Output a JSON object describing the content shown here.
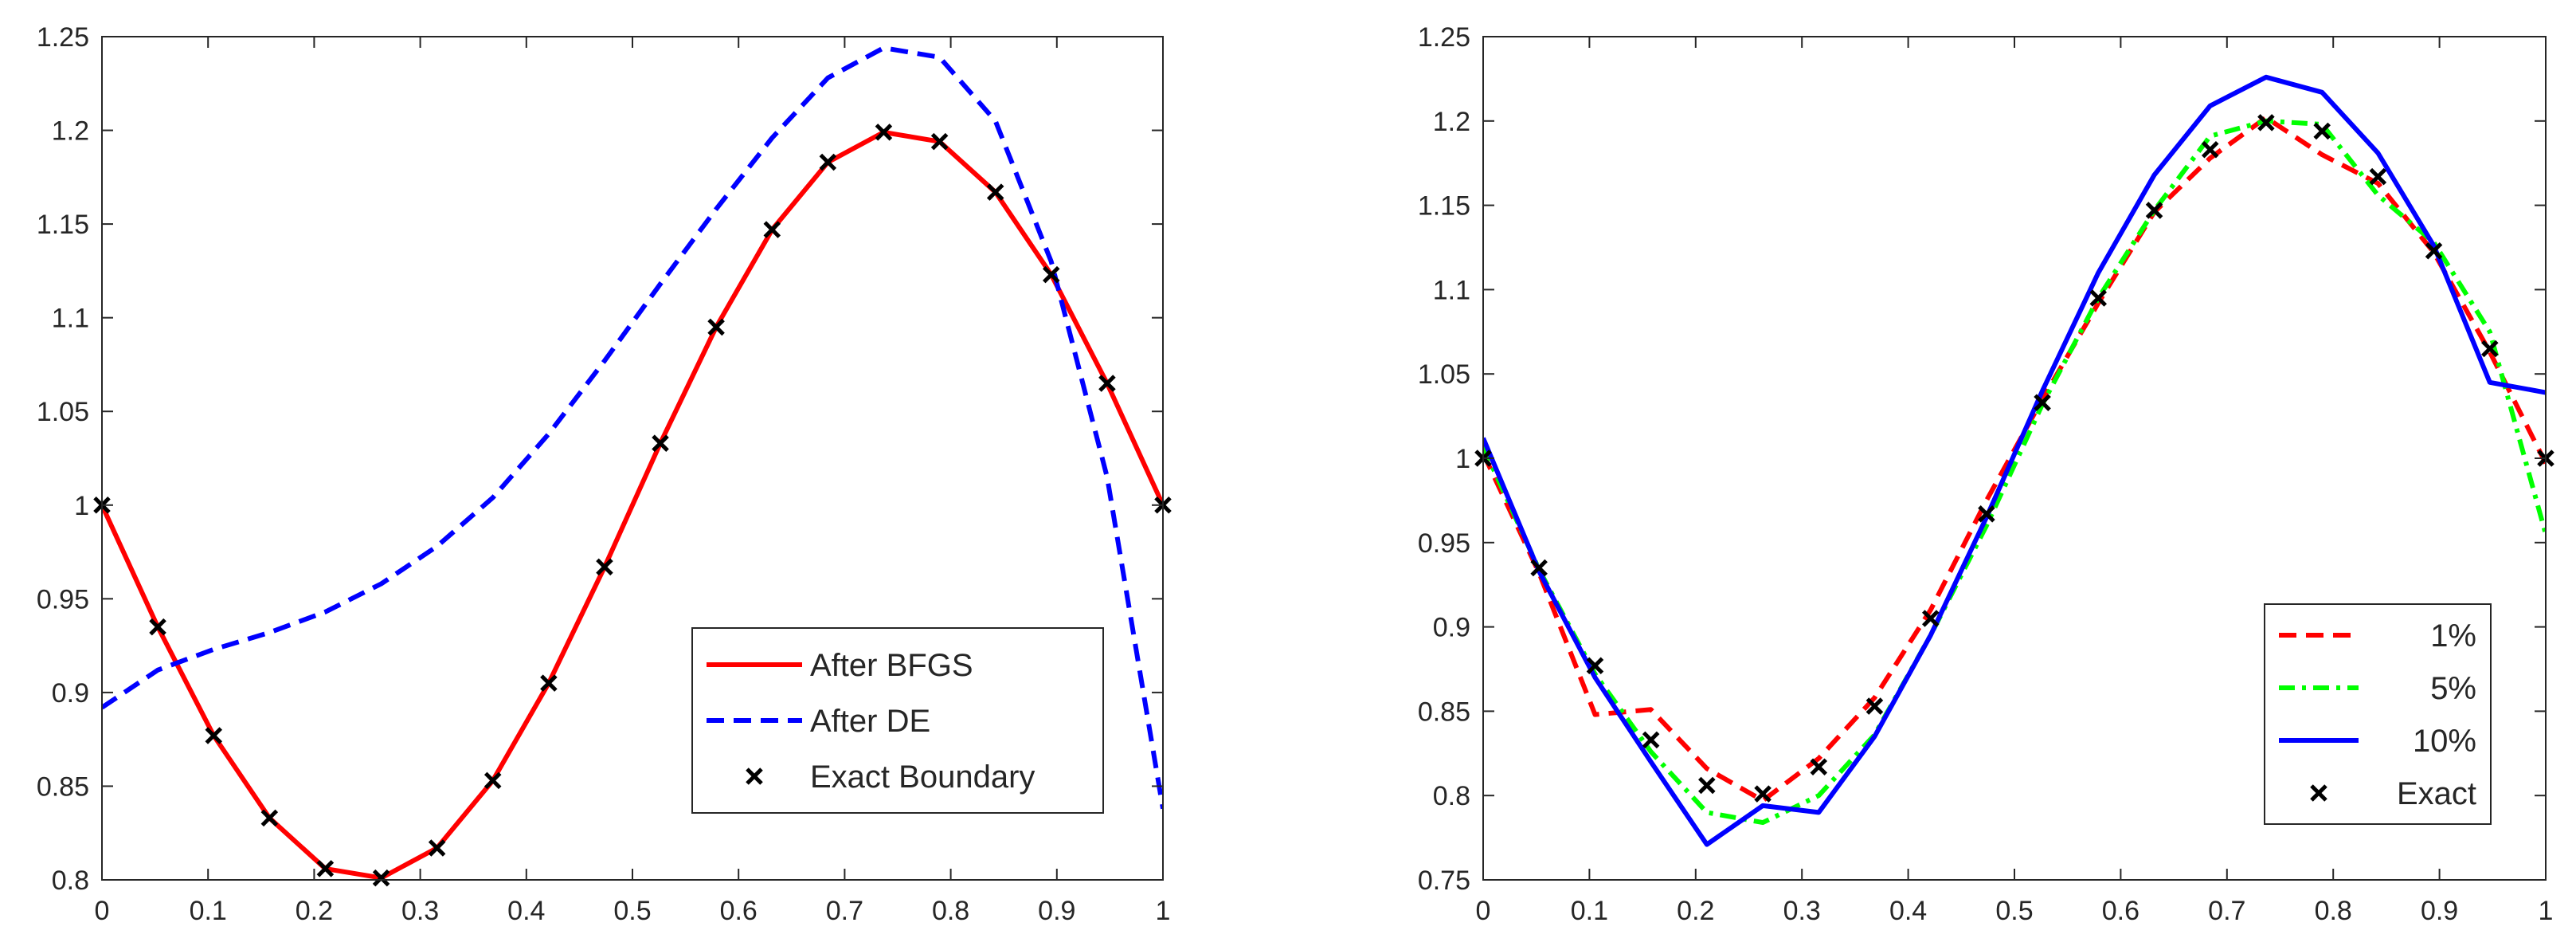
{
  "chart_data": [
    {
      "type": "line",
      "title": "",
      "xlabel": "",
      "ylabel": "",
      "xlim": [
        0,
        1
      ],
      "ylim": [
        0.8,
        1.25
      ],
      "xticks": [
        0,
        0.1,
        0.2,
        0.3,
        0.4,
        0.5,
        0.6,
        0.7,
        0.8,
        0.9,
        1
      ],
      "xtick_labels": [
        "0",
        "0.1",
        "0.2",
        "0.3",
        "0.4",
        "0.5",
        "0.6",
        "0.7",
        "0.8",
        "0.9",
        "1"
      ],
      "yticks": [
        0.8,
        0.85,
        0.9,
        0.95,
        1,
        1.05,
        1.1,
        1.15,
        1.2,
        1.25
      ],
      "ytick_labels": [
        "0.8",
        "0.85",
        "0.9",
        "0.95",
        "1",
        "1.05",
        "1.1",
        "1.15",
        "1.2",
        "1.25"
      ],
      "legend_position": "bottom-right",
      "series": [
        {
          "name": "After BFGS",
          "style": "solid",
          "color": "#ff0000",
          "x": [
            0,
            0.0526,
            0.1053,
            0.1579,
            0.2105,
            0.2632,
            0.3158,
            0.3684,
            0.4211,
            0.4737,
            0.5263,
            0.5789,
            0.6316,
            0.6842,
            0.7368,
            0.7895,
            0.8421,
            0.8947,
            0.9474,
            1
          ],
          "y": [
            1.0,
            0.935,
            0.877,
            0.833,
            0.806,
            0.801,
            0.817,
            0.853,
            0.905,
            0.967,
            1.033,
            1.095,
            1.147,
            1.183,
            1.199,
            1.194,
            1.167,
            1.123,
            1.065,
            1.0
          ]
        },
        {
          "name": "After DE",
          "style": "dashed",
          "color": "#0000ff",
          "x": [
            0,
            0.0526,
            0.1053,
            0.1579,
            0.2105,
            0.2632,
            0.3158,
            0.3684,
            0.4211,
            0.4737,
            0.5263,
            0.5789,
            0.6316,
            0.6842,
            0.7368,
            0.7895,
            0.8421,
            0.8947,
            0.9474,
            1
          ],
          "y": [
            0.892,
            0.912,
            0.923,
            0.932,
            0.943,
            0.958,
            0.978,
            1.004,
            1.038,
            1.077,
            1.118,
            1.158,
            1.196,
            1.228,
            1.244,
            1.239,
            1.205,
            1.13,
            1.015,
            0.838
          ]
        },
        {
          "name": "Exact Boundary",
          "style": "marker-x",
          "color": "#000000",
          "x": [
            0,
            0.0526,
            0.1053,
            0.1579,
            0.2105,
            0.2632,
            0.3158,
            0.3684,
            0.4211,
            0.4737,
            0.5263,
            0.5789,
            0.6316,
            0.6842,
            0.7368,
            0.7895,
            0.8421,
            0.8947,
            0.9474,
            1
          ],
          "y": [
            1.0,
            0.935,
            0.877,
            0.833,
            0.806,
            0.801,
            0.817,
            0.853,
            0.905,
            0.967,
            1.033,
            1.095,
            1.147,
            1.183,
            1.199,
            1.194,
            1.167,
            1.123,
            1.065,
            1.0
          ]
        }
      ]
    },
    {
      "type": "line",
      "title": "",
      "xlabel": "",
      "ylabel": "",
      "xlim": [
        0,
        1
      ],
      "ylim": [
        0.75,
        1.25
      ],
      "xticks": [
        0,
        0.1,
        0.2,
        0.3,
        0.4,
        0.5,
        0.6,
        0.7,
        0.8,
        0.9,
        1
      ],
      "xtick_labels": [
        "0",
        "0.1",
        "0.2",
        "0.3",
        "0.4",
        "0.5",
        "0.6",
        "0.7",
        "0.8",
        "0.9",
        "1"
      ],
      "yticks": [
        0.75,
        0.8,
        0.85,
        0.9,
        0.95,
        1,
        1.05,
        1.1,
        1.15,
        1.2,
        1.25
      ],
      "ytick_labels": [
        "0.75",
        "0.8",
        "0.85",
        "0.9",
        "0.95",
        "1",
        "1.05",
        "1.1",
        "1.15",
        "1.2",
        "1.25"
      ],
      "legend_position": "bottom-right",
      "series": [
        {
          "name": "1%",
          "style": "dashed",
          "color": "#ff0000",
          "x": [
            0,
            0.0526,
            0.1053,
            0.1579,
            0.2105,
            0.2632,
            0.3158,
            0.3684,
            0.4211,
            0.4737,
            0.5263,
            0.5789,
            0.6316,
            0.6842,
            0.7368,
            0.7895,
            0.8421,
            0.8947,
            0.9474,
            1
          ],
          "y": [
            1.003,
            0.932,
            0.848,
            0.851,
            0.816,
            0.797,
            0.822,
            0.858,
            0.91,
            0.975,
            1.035,
            1.092,
            1.146,
            1.178,
            1.202,
            1.18,
            1.163,
            1.122,
            1.063,
            0.997
          ]
        },
        {
          "name": "5%",
          "style": "dashdot",
          "color": "#00ff00",
          "x": [
            0,
            0.0526,
            0.1053,
            0.1579,
            0.2105,
            0.2632,
            0.3158,
            0.3684,
            0.4211,
            0.4737,
            0.5263,
            0.5789,
            0.6316,
            0.6842,
            0.7368,
            0.7895,
            0.8421,
            0.8947,
            0.9474,
            1
          ],
          "y": [
            1.007,
            0.934,
            0.872,
            0.826,
            0.79,
            0.784,
            0.8,
            0.836,
            0.895,
            0.96,
            1.032,
            1.095,
            1.147,
            1.191,
            1.2,
            1.198,
            1.156,
            1.128,
            1.075,
            0.955
          ]
        },
        {
          "name": "10%",
          "style": "solid",
          "color": "#0000ff",
          "x": [
            0,
            0.0526,
            0.1053,
            0.1579,
            0.2105,
            0.2632,
            0.3158,
            0.3684,
            0.4211,
            0.4737,
            0.5263,
            0.5789,
            0.6316,
            0.6842,
            0.7368,
            0.7895,
            0.8421,
            0.8947,
            0.9474,
            1
          ],
          "y": [
            1.012,
            0.933,
            0.87,
            0.82,
            0.771,
            0.794,
            0.79,
            0.835,
            0.895,
            0.965,
            1.04,
            1.11,
            1.168,
            1.209,
            1.226,
            1.217,
            1.181,
            1.126,
            1.045,
            1.039
          ]
        },
        {
          "name": "Exact",
          "style": "marker-x",
          "color": "#000000",
          "x": [
            0,
            0.0526,
            0.1053,
            0.1579,
            0.2105,
            0.2632,
            0.3158,
            0.3684,
            0.4211,
            0.4737,
            0.5263,
            0.5789,
            0.6316,
            0.6842,
            0.7368,
            0.7895,
            0.8421,
            0.8947,
            0.9474,
            1
          ],
          "y": [
            1.0,
            0.935,
            0.877,
            0.833,
            0.806,
            0.801,
            0.817,
            0.853,
            0.905,
            0.967,
            1.033,
            1.095,
            1.147,
            1.183,
            1.199,
            1.194,
            1.167,
            1.123,
            1.065,
            1.0
          ]
        }
      ]
    }
  ]
}
